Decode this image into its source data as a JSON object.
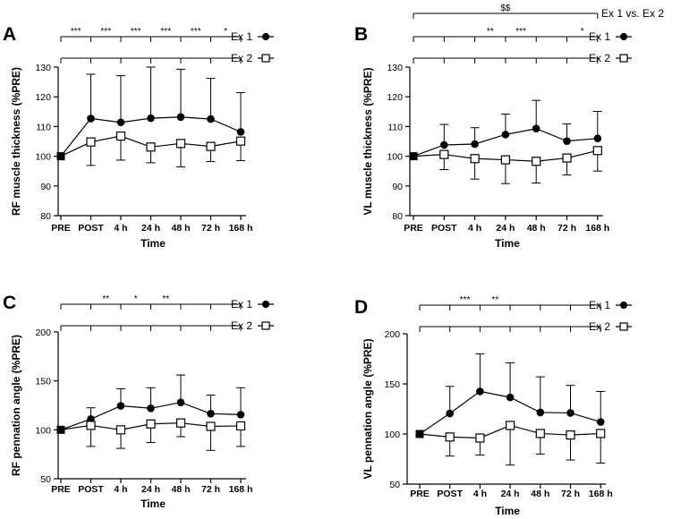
{
  "chart_data": [
    {
      "panel": "A",
      "type": "line",
      "categories": [
        "PRE",
        "POST",
        "4 h",
        "24 h",
        "48 h",
        "72 h",
        "168 h"
      ],
      "xlabel": "Time",
      "ylabel": "RF muscle thickness (%PRE)",
      "ylim": [
        80,
        130
      ],
      "yticks": [
        80,
        90,
        100,
        110,
        120,
        130
      ],
      "series": [
        {
          "name": "Ex 1",
          "marker": "filled-circle",
          "values": [
            100,
            112.7,
            111.4,
            112.8,
            113.2,
            112.5,
            108.2
          ],
          "sd_upper": [
            100,
            127.6,
            127.1,
            130.0,
            129.3,
            126.2,
            121.4
          ],
          "sd_lower": [
            100,
            112.7,
            111.4,
            112.8,
            113.2,
            112.5,
            108.2
          ]
        },
        {
          "name": "Ex 2",
          "marker": "open-square",
          "values": [
            100,
            104.8,
            106.8,
            103.1,
            104.3,
            103.3,
            105.1
          ],
          "sd_upper": [
            100,
            104.8,
            106.8,
            103.1,
            104.3,
            103.3,
            105.1
          ],
          "sd_lower": [
            100,
            96.9,
            98.7,
            97.8,
            96.4,
            98.2,
            98.5
          ]
        }
      ],
      "significance": [
        {
          "label": "Ex 1",
          "stars": [
            "",
            "***",
            "***",
            "***",
            "***",
            "***",
            "*"
          ]
        },
        {
          "label": "Ex 2",
          "stars": [
            "",
            "",
            "",
            "",
            "",
            "",
            ""
          ]
        }
      ]
    },
    {
      "panel": "B",
      "type": "line",
      "categories": [
        "PRE",
        "POST",
        "4 h",
        "24 h",
        "48 h",
        "72 h",
        "168 h"
      ],
      "xlabel": "Time",
      "ylabel": "VL muscle thickness (%PRE)",
      "ylim": [
        80,
        130
      ],
      "yticks": [
        80,
        90,
        100,
        110,
        120,
        130
      ],
      "series": [
        {
          "name": "Ex 1",
          "marker": "filled-circle",
          "values": [
            100,
            103.8,
            104.1,
            107.3,
            109.3,
            105.1,
            106.0
          ],
          "sd_upper": [
            100,
            110.7,
            109.6,
            114.2,
            118.8,
            110.9,
            115.1
          ],
          "sd_lower": [
            100,
            103.8,
            104.1,
            107.3,
            109.3,
            105.1,
            106.0
          ]
        },
        {
          "name": "Ex 2",
          "marker": "open-square",
          "values": [
            100,
            100.6,
            99.2,
            98.8,
            98.3,
            99.4,
            101.9
          ],
          "sd_upper": [
            100,
            100.6,
            99.2,
            98.8,
            98.3,
            99.4,
            101.9
          ],
          "sd_lower": [
            100,
            95.5,
            92.3,
            90.8,
            91.0,
            93.7,
            95.0
          ]
        }
      ],
      "group_bracket": {
        "label": "Ex 1 vs. Ex 2",
        "mark": "$$"
      },
      "significance": [
        {
          "label": "Ex 1",
          "stars": [
            "",
            "",
            "",
            "**",
            "***",
            "",
            "*"
          ]
        },
        {
          "label": "Ex 2",
          "stars": [
            "",
            "",
            "",
            "",
            "",
            "",
            ""
          ]
        }
      ]
    },
    {
      "panel": "C",
      "type": "line",
      "categories": [
        "PRE",
        "POST",
        "4 h",
        "24 h",
        "48 h",
        "72 h",
        "168 h"
      ],
      "xlabel": "Time",
      "ylabel": "RF pennation angle (%PRE)",
      "ylim": [
        50,
        200
      ],
      "yticks": [
        50,
        100,
        150,
        200
      ],
      "series": [
        {
          "name": "Ex 1",
          "marker": "filled-circle",
          "values": [
            100,
            111,
            124.5,
            122,
            128,
            116.5,
            115.5
          ],
          "sd_upper": [
            100,
            122.5,
            142,
            143,
            156,
            135.5,
            143
          ],
          "sd_lower": [
            100,
            111,
            124.5,
            122,
            128,
            116.5,
            115.5
          ]
        },
        {
          "name": "Ex 2",
          "marker": "open-square",
          "values": [
            100,
            104.5,
            100,
            106,
            107,
            103.5,
            104
          ],
          "sd_upper": [
            100,
            104.5,
            100,
            106,
            107,
            103.5,
            104
          ],
          "sd_lower": [
            100,
            83,
            81,
            87,
            93,
            79,
            83
          ]
        }
      ],
      "significance": [
        {
          "label": "Ex 1",
          "stars": [
            "",
            "",
            "**",
            "*",
            "**",
            "",
            ""
          ]
        },
        {
          "label": "Ex 2",
          "stars": [
            "",
            "",
            "",
            "",
            "",
            "",
            ""
          ]
        }
      ]
    },
    {
      "panel": "D",
      "type": "line",
      "categories": [
        "PRE",
        "POST",
        "4 h",
        "24 h",
        "48 h",
        "72 h",
        "168 h"
      ],
      "xlabel": "Time",
      "ylabel": "VL pennation angle (%PRE)",
      "ylim": [
        50,
        200
      ],
      "yticks": [
        50,
        100,
        150,
        200
      ],
      "series": [
        {
          "name": "Ex 1",
          "marker": "filled-circle",
          "values": [
            100,
            120.5,
            142.5,
            136.5,
            121.5,
            121,
            112
          ],
          "sd_upper": [
            100,
            147.5,
            180,
            171,
            157,
            148.5,
            142.5
          ],
          "sd_lower": [
            100,
            120.5,
            142.5,
            136.5,
            121.5,
            121,
            112
          ]
        },
        {
          "name": "Ex 2",
          "marker": "open-square",
          "values": [
            100,
            97,
            96,
            108.5,
            100.5,
            99,
            100.5
          ],
          "sd_upper": [
            100,
            97,
            96,
            108.5,
            100.5,
            99,
            100.5
          ],
          "sd_lower": [
            100,
            78,
            79,
            69,
            80,
            74,
            71
          ]
        }
      ],
      "significance": [
        {
          "label": "Ex 1",
          "stars": [
            "",
            "",
            "***",
            "**",
            "",
            "",
            ""
          ]
        },
        {
          "label": "Ex 2",
          "stars": [
            "",
            "",
            "",
            "",
            "",
            "",
            ""
          ]
        }
      ]
    }
  ]
}
